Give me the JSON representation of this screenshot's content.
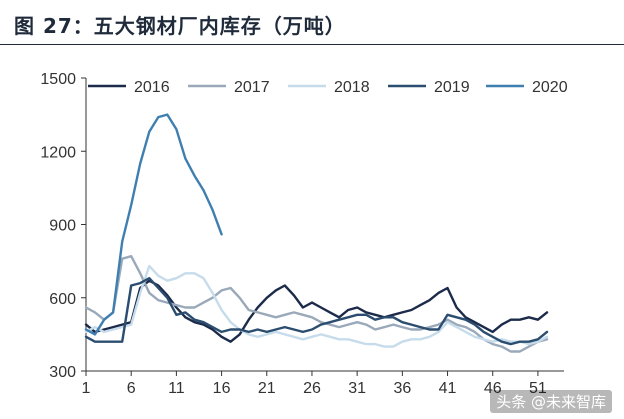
{
  "figure": {
    "title": "图 27：五大钢材厂内库存（万吨）",
    "watermark": "头条 @未来智库"
  },
  "colors": {
    "2016": "#1c2b4a",
    "2017": "#9aa9ba",
    "2018": "#c6dceb",
    "2019": "#2b4d6f",
    "2020": "#3f7fb0",
    "axis": "#333333",
    "text": "#333333"
  },
  "chart_data": {
    "type": "line",
    "title": "",
    "xlabel": "",
    "ylabel": "",
    "xlim": [
      1,
      53
    ],
    "ylim": [
      300,
      1500
    ],
    "x_ticks": [
      1,
      6,
      11,
      16,
      21,
      26,
      31,
      36,
      41,
      46,
      51
    ],
    "x_tick_labels": [
      "1",
      "6",
      "11",
      "16",
      "21",
      "26",
      "31",
      "36",
      "41",
      "46",
      "51"
    ],
    "y_ticks": [
      300,
      600,
      900,
      1200,
      1500
    ],
    "grid": false,
    "legend_position": "top",
    "series": [
      {
        "name": "2016",
        "x": [
          1,
          2,
          3,
          4,
          5,
          6,
          7,
          8,
          9,
          10,
          11,
          12,
          13,
          14,
          15,
          16,
          17,
          18,
          19,
          20,
          21,
          22,
          23,
          24,
          25,
          26,
          27,
          28,
          29,
          30,
          31,
          32,
          33,
          34,
          35,
          36,
          37,
          38,
          39,
          40,
          41,
          42,
          43,
          44,
          45,
          46,
          47,
          48,
          49,
          50,
          51,
          52
        ],
        "values": [
          490,
          460,
          470,
          480,
          490,
          500,
          640,
          670,
          650,
          610,
          560,
          520,
          500,
          490,
          470,
          440,
          420,
          450,
          510,
          560,
          600,
          630,
          650,
          610,
          560,
          580,
          560,
          540,
          520,
          550,
          560,
          540,
          530,
          520,
          530,
          540,
          550,
          570,
          590,
          620,
          640,
          560,
          520,
          500,
          480,
          460,
          490,
          510,
          510,
          520,
          510,
          540
        ]
      },
      {
        "name": "2017",
        "x": [
          1,
          2,
          3,
          4,
          5,
          6,
          7,
          8,
          9,
          10,
          11,
          12,
          13,
          14,
          15,
          16,
          17,
          18,
          19,
          20,
          21,
          22,
          23,
          24,
          25,
          26,
          27,
          28,
          29,
          30,
          31,
          32,
          33,
          34,
          35,
          36,
          37,
          38,
          39,
          40,
          41,
          42,
          43,
          44,
          45,
          46,
          47,
          48,
          49,
          50,
          51,
          52
        ],
        "values": [
          560,
          540,
          510,
          540,
          760,
          770,
          700,
          620,
          590,
          580,
          570,
          560,
          560,
          580,
          600,
          630,
          640,
          600,
          550,
          540,
          530,
          520,
          530,
          540,
          530,
          520,
          500,
          490,
          480,
          490,
          500,
          490,
          470,
          480,
          490,
          480,
          470,
          470,
          480,
          490,
          510,
          490,
          480,
          460,
          430,
          410,
          400,
          380,
          380,
          400,
          420,
          430
        ]
      },
      {
        "name": "2018",
        "x": [
          1,
          2,
          3,
          4,
          5,
          6,
          7,
          8,
          9,
          10,
          11,
          12,
          13,
          14,
          15,
          16,
          17,
          18,
          19,
          20,
          21,
          22,
          23,
          24,
          25,
          26,
          27,
          28,
          29,
          30,
          31,
          32,
          33,
          34,
          35,
          36,
          37,
          38,
          39,
          40,
          41,
          42,
          43,
          44,
          45,
          46,
          47,
          48,
          49,
          50,
          51,
          52
        ],
        "values": [
          460,
          480,
          460,
          470,
          480,
          490,
          620,
          730,
          690,
          670,
          680,
          700,
          700,
          680,
          620,
          550,
          500,
          470,
          450,
          440,
          450,
          460,
          450,
          440,
          430,
          440,
          450,
          440,
          430,
          430,
          420,
          410,
          410,
          400,
          400,
          420,
          430,
          430,
          440,
          460,
          500,
          480,
          460,
          440,
          430,
          420,
          430,
          420,
          420,
          410,
          420,
          440
        ]
      },
      {
        "name": "2019",
        "x": [
          1,
          2,
          3,
          4,
          5,
          6,
          7,
          8,
          9,
          10,
          11,
          12,
          13,
          14,
          15,
          16,
          17,
          18,
          19,
          20,
          21,
          22,
          23,
          24,
          25,
          26,
          27,
          28,
          29,
          30,
          31,
          32,
          33,
          34,
          35,
          36,
          37,
          38,
          39,
          40,
          41,
          42,
          43,
          44,
          45,
          46,
          47,
          48,
          49,
          50,
          51,
          52
        ],
        "values": [
          440,
          420,
          420,
          420,
          420,
          650,
          660,
          680,
          640,
          600,
          530,
          540,
          510,
          500,
          480,
          460,
          470,
          470,
          460,
          470,
          460,
          470,
          480,
          470,
          460,
          470,
          490,
          500,
          510,
          520,
          530,
          530,
          510,
          520,
          520,
          500,
          490,
          480,
          470,
          470,
          530,
          520,
          510,
          490,
          460,
          440,
          420,
          410,
          420,
          420,
          430,
          460
        ]
      },
      {
        "name": "2020",
        "x": [
          1,
          2,
          3,
          4,
          5,
          6,
          7,
          8,
          9,
          10,
          11,
          12,
          13,
          14,
          15,
          16
        ],
        "values": [
          470,
          450,
          510,
          540,
          830,
          980,
          1150,
          1280,
          1340,
          1350,
          1290,
          1170,
          1100,
          1040,
          960,
          860
        ]
      }
    ]
  }
}
